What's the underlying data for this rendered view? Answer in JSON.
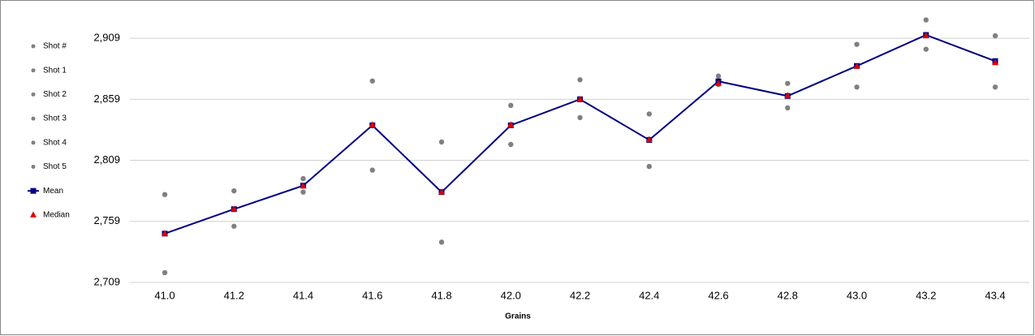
{
  "chart_data": {
    "type": "line",
    "x_label": "Grains",
    "categories": [
      "41.0",
      "41.2",
      "41.4",
      "41.6",
      "41.8",
      "42.0",
      "42.2",
      "42.4",
      "42.6",
      "42.8",
      "43.0",
      "43.2",
      "43.4"
    ],
    "ylim": [
      2709,
      2937
    ],
    "yticks": [
      {
        "value": 2709,
        "label": "2,709"
      },
      {
        "value": 2759,
        "label": "2,759"
      },
      {
        "value": 2809,
        "label": "2,809"
      },
      {
        "value": 2859,
        "label": "2,859"
      },
      {
        "value": 2909,
        "label": "2,909"
      }
    ],
    "grid": true,
    "legend": "left",
    "series": [
      {
        "name": "Shot #",
        "color": "#808080",
        "marker": "circle",
        "line": false,
        "values": [
          null,
          null,
          null,
          null,
          null,
          null,
          null,
          null,
          null,
          null,
          null,
          null,
          null
        ]
      },
      {
        "name": "Shot 1",
        "color": "#808080",
        "marker": "circle",
        "line": false,
        "values": [
          2781,
          2784,
          2794,
          2874,
          2824,
          2854,
          2875,
          2847,
          2878,
          2872,
          2904,
          2924,
          2911
        ]
      },
      {
        "name": "Shot 2",
        "color": "#808080",
        "marker": "circle",
        "line": false,
        "values": [
          2717,
          2755,
          2783,
          2801,
          2742,
          2822,
          2844,
          2804,
          2871,
          2852,
          2869,
          2900,
          2869
        ]
      },
      {
        "name": "Shot 3",
        "color": "#808080",
        "marker": "circle",
        "line": false,
        "values": [
          2749,
          2769,
          2788,
          2838,
          2783,
          2838,
          2859,
          2826,
          2873,
          2862,
          2886,
          2912,
          2890
        ]
      },
      {
        "name": "Shot 4",
        "color": "#808080",
        "marker": "circle",
        "line": false,
        "values": [
          2749,
          2769,
          2788,
          2838,
          2783,
          2838,
          2859,
          2826,
          2873,
          2862,
          2886,
          2912,
          2890
        ]
      },
      {
        "name": "Shot 5",
        "color": "#808080",
        "marker": "circle",
        "line": false,
        "values": [
          2749,
          2769,
          2788,
          2838,
          2783,
          2838,
          2859,
          2826,
          2873,
          2862,
          2886,
          2912,
          2890
        ]
      },
      {
        "name": "Mean",
        "color": "#000080",
        "marker": "square",
        "line": true,
        "values": [
          2749,
          2769,
          2788.3,
          2837.7,
          2783,
          2837.7,
          2859,
          2825.7,
          2873.7,
          2861.7,
          2886.3,
          2911.7,
          2890.3
        ]
      },
      {
        "name": "Median",
        "color": "#e00000",
        "marker": "triangle",
        "line": false,
        "values": [
          2749,
          2769,
          2788,
          2838,
          2783,
          2838,
          2859,
          2826,
          2872,
          2862,
          2886,
          2911,
          2889
        ]
      }
    ]
  }
}
